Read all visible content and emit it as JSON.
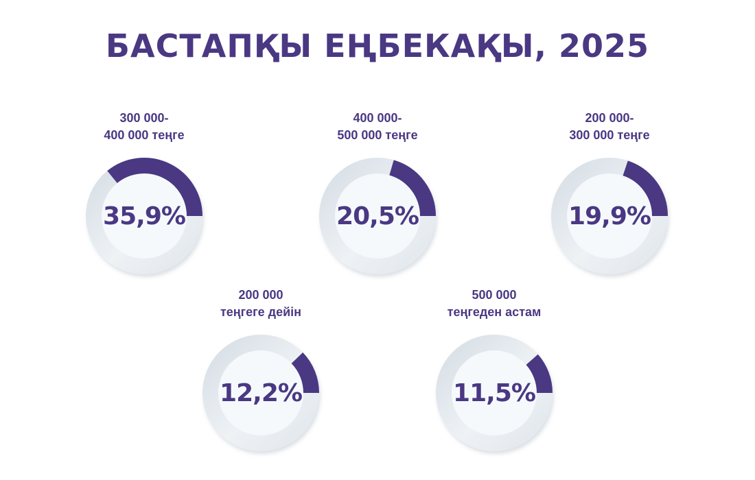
{
  "chart_data": {
    "type": "pie",
    "title": "БАСТАПҚЫ ЕҢБЕКАҚЫ, 2025",
    "unit": "%",
    "items": [
      {
        "label_lines": [
          "300 000-",
          "400 000 теңге"
        ],
        "value": 35.9,
        "value_label": "35,9%"
      },
      {
        "label_lines": [
          "400 000-",
          "500 000 теңге"
        ],
        "value": 20.5,
        "value_label": "20,5%"
      },
      {
        "label_lines": [
          "200 000-",
          "300 000 теңге"
        ],
        "value": 19.9,
        "value_label": "19,9%"
      },
      {
        "label_lines": [
          "200 000",
          "теңгеге дейін"
        ],
        "value": 12.2,
        "value_label": "12,2%"
      },
      {
        "label_lines": [
          "500 000",
          "теңгеден астам"
        ],
        "value": 11.5,
        "value_label": "11,5%"
      }
    ]
  },
  "colors": {
    "accent": "#4a3883",
    "ring_track": "#e4e9ee",
    "ring_inner": "#f5f9fc"
  }
}
